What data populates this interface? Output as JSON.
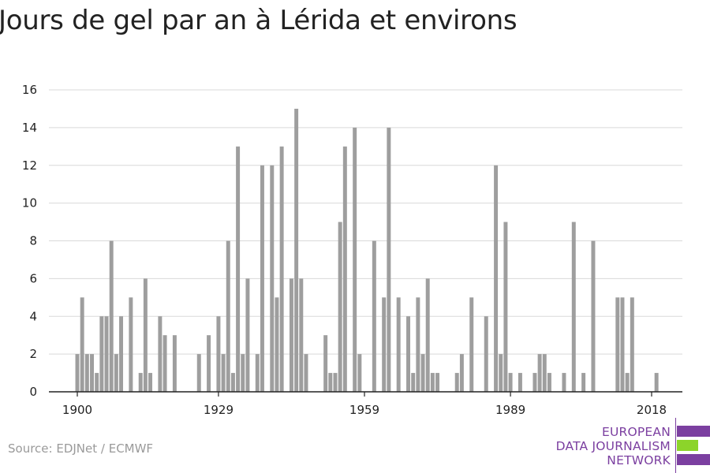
{
  "title": "Jours de gel par an à Lérida et environs",
  "source": "Source: EDJNet / ECMWF",
  "logo": {
    "line1": "EUROPEAN",
    "line2": "DATA JOURNALISM",
    "line3": "NETWORK"
  },
  "colors": {
    "bar": "#9e9e9e",
    "grid": "#d9d9d9",
    "axis": "#222222",
    "text": "#222222",
    "logo_purple": "#7b3fa0",
    "logo_green": "#8cd42a"
  },
  "chart_data": {
    "type": "bar",
    "title": "Jours de gel par an à Lérida et environs",
    "xlabel": "",
    "ylabel": "",
    "xlim": [
      1896,
      2025
    ],
    "ylim": [
      0,
      16
    ],
    "yticks": [
      0,
      2,
      4,
      6,
      8,
      10,
      12,
      14,
      16
    ],
    "xticks": [
      1900,
      1929,
      1959,
      1989,
      2018
    ],
    "grid": true,
    "x": [
      1900,
      1901,
      1902,
      1903,
      1904,
      1905,
      1906,
      1907,
      1908,
      1909,
      1910,
      1911,
      1912,
      1913,
      1914,
      1915,
      1916,
      1917,
      1918,
      1919,
      1920,
      1921,
      1922,
      1923,
      1924,
      1925,
      1926,
      1927,
      1928,
      1929,
      1930,
      1931,
      1932,
      1933,
      1934,
      1935,
      1936,
      1937,
      1938,
      1939,
      1940,
      1941,
      1942,
      1943,
      1944,
      1945,
      1946,
      1947,
      1948,
      1949,
      1950,
      1951,
      1952,
      1953,
      1954,
      1955,
      1956,
      1957,
      1958,
      1959,
      1960,
      1961,
      1962,
      1963,
      1964,
      1965,
      1966,
      1967,
      1968,
      1969,
      1970,
      1971,
      1972,
      1973,
      1974,
      1975,
      1976,
      1977,
      1978,
      1979,
      1980,
      1981,
      1982,
      1983,
      1984,
      1985,
      1986,
      1987,
      1988,
      1989,
      1990,
      1991,
      1992,
      1993,
      1994,
      1995,
      1996,
      1997,
      1998,
      1999,
      2000,
      2001,
      2002,
      2003,
      2004,
      2005,
      2006,
      2007,
      2008,
      2009,
      2010,
      2011,
      2012,
      2013,
      2014,
      2015,
      2016,
      2017,
      2018,
      2019
    ],
    "values": [
      2,
      5,
      2,
      2,
      1,
      4,
      4,
      8,
      2,
      4,
      0,
      5,
      0,
      1,
      6,
      1,
      0,
      4,
      3,
      0,
      3,
      0,
      0,
      0,
      0,
      2,
      0,
      3,
      0,
      4,
      2,
      8,
      1,
      13,
      2,
      6,
      0,
      2,
      12,
      0,
      12,
      5,
      13,
      0,
      6,
      15,
      6,
      2,
      0,
      0,
      0,
      3,
      1,
      1,
      9,
      13,
      0,
      14,
      2,
      0,
      0,
      8,
      0,
      5,
      14,
      0,
      5,
      0,
      4,
      1,
      5,
      2,
      6,
      1,
      1,
      0,
      0,
      0,
      1,
      2,
      0,
      5,
      0,
      0,
      4,
      0,
      12,
      2,
      9,
      1,
      0,
      1,
      0,
      0,
      1,
      2,
      2,
      1,
      0,
      0,
      1,
      0,
      9,
      0,
      1,
      0,
      8,
      0,
      0,
      0,
      0,
      5,
      5,
      1,
      5,
      0,
      0,
      0,
      0,
      1
    ]
  }
}
